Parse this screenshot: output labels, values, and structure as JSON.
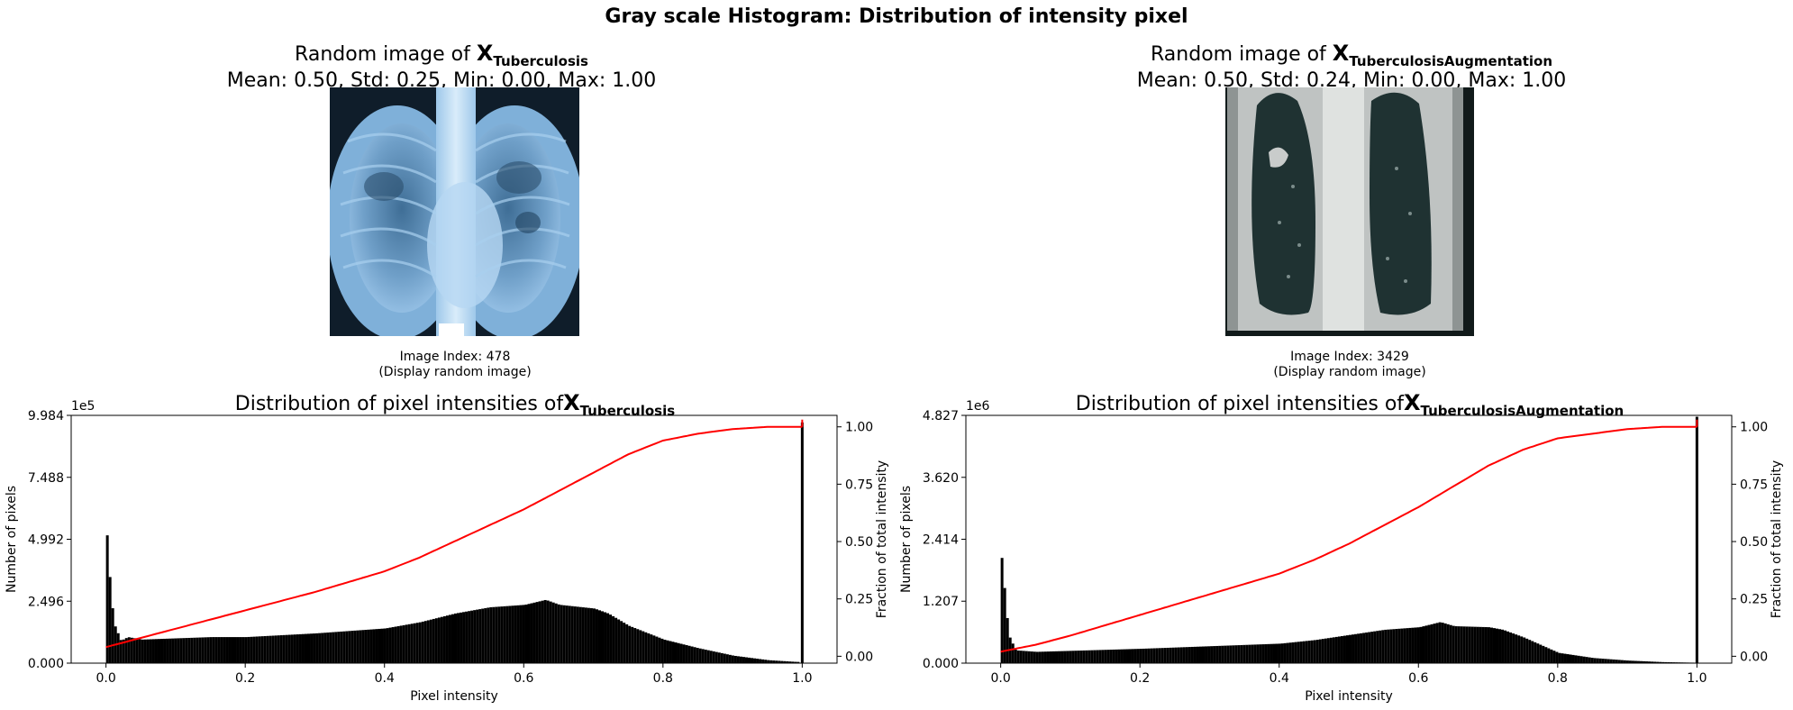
{
  "suptitle": "Gray scale Histogram: Distribution of intensity pixel",
  "panels": [
    {
      "image_title_prefix": "Random image of ",
      "image_title_symbol": "X",
      "image_title_subscript": "Tuberculosis",
      "image_stats": "Mean:  0.50, Std:  0.25, Min:  0.00, Max:  1.00",
      "caption_line1": "Image Index: 478",
      "caption_line2": "(Display random image)",
      "hist_title_prefix": "Distribution of pixel intensities of",
      "hist_title_symbol": "X",
      "hist_title_subscript": "Tuberculosis",
      "colors": {
        "image_tint": "#8fbfe6",
        "image_dark": "#0e1e2c"
      }
    },
    {
      "image_title_prefix": "Random image of ",
      "image_title_symbol": "X",
      "image_title_subscript": "TuberculosisAugmentation",
      "image_stats": "Mean:  0.50, Std:  0.24, Min:  0.00, Max:  1.00",
      "caption_line1": "Image Index: 3429",
      "caption_line2": "(Display random image)",
      "hist_title_prefix": "Distribution of pixel intensities of",
      "hist_title_symbol": "X",
      "hist_title_subscript": "TuberculosisAugmentation",
      "colors": {
        "image_tint": "#c9cccb",
        "image_dark": "#152322"
      }
    }
  ],
  "chart_data": [
    {
      "type": "bar",
      "xlabel": "Pixel intensity",
      "ylabel": "Number of pixels",
      "y2label": "Fraction of total intensity",
      "y_offset_label": "1e5",
      "xlim": [
        -0.05,
        1.05
      ],
      "ylim": [
        0,
        9.984
      ],
      "y2lim": [
        -0.03,
        1.05
      ],
      "xticks": [
        "0.0",
        "0.2",
        "0.4",
        "0.6",
        "0.8",
        "1.0"
      ],
      "xtick_values": [
        0,
        0.2,
        0.4,
        0.6,
        0.8,
        1.0
      ],
      "yticks": [
        "0.000",
        "2.496",
        "4.992",
        "7.488",
        "9.984"
      ],
      "ytick_values": [
        0,
        2.496,
        4.992,
        7.488,
        9.984
      ],
      "y2ticks": [
        "0.00",
        "0.25",
        "0.50",
        "0.75",
        "1.00"
      ],
      "y2tick_values": [
        0,
        0.25,
        0.5,
        0.75,
        1.0
      ],
      "histogram": {
        "x": [
          0.0,
          0.005,
          0.01,
          0.02,
          0.03,
          0.05,
          0.1,
          0.15,
          0.2,
          0.3,
          0.4,
          0.45,
          0.5,
          0.55,
          0.6,
          0.63,
          0.65,
          0.7,
          0.72,
          0.75,
          0.8,
          0.85,
          0.9,
          0.95,
          0.99,
          1.0
        ],
        "values": [
          5.15,
          3.0,
          1.6,
          0.9,
          1.05,
          0.95,
          1.0,
          1.05,
          1.05,
          1.2,
          1.4,
          1.65,
          2.0,
          2.25,
          2.35,
          2.55,
          2.35,
          2.2,
          2.0,
          1.5,
          0.95,
          0.6,
          0.3,
          0.12,
          0.05,
          9.7
        ]
      },
      "cumulative": {
        "name": "",
        "color": "#ff0000",
        "x": [
          0.0,
          0.05,
          0.1,
          0.2,
          0.3,
          0.4,
          0.45,
          0.5,
          0.55,
          0.6,
          0.65,
          0.7,
          0.75,
          0.8,
          0.85,
          0.9,
          0.95,
          1.0
        ],
        "values": [
          0.04,
          0.08,
          0.12,
          0.2,
          0.28,
          0.37,
          0.43,
          0.5,
          0.57,
          0.64,
          0.72,
          0.8,
          0.88,
          0.94,
          0.97,
          0.99,
          1.0,
          1.0
        ]
      }
    },
    {
      "type": "bar",
      "xlabel": "Pixel intensity",
      "ylabel": "Number of pixels",
      "y2label": "Fraction of total intensity",
      "y_offset_label": "1e6",
      "xlim": [
        -0.05,
        1.05
      ],
      "ylim": [
        0,
        4.827
      ],
      "y2lim": [
        -0.03,
        1.05
      ],
      "xticks": [
        "0.0",
        "0.2",
        "0.4",
        "0.6",
        "0.8",
        "1.0"
      ],
      "xtick_values": [
        0,
        0.2,
        0.4,
        0.6,
        0.8,
        1.0
      ],
      "yticks": [
        "0.000",
        "1.207",
        "2.414",
        "3.620",
        "4.827"
      ],
      "ytick_values": [
        0,
        1.207,
        2.414,
        3.62,
        4.827
      ],
      "y2ticks": [
        "0.00",
        "0.25",
        "0.50",
        "0.75",
        "1.00"
      ],
      "y2tick_values": [
        0,
        0.25,
        0.5,
        0.75,
        1.0
      ],
      "histogram": {
        "x": [
          0.0,
          0.005,
          0.01,
          0.02,
          0.05,
          0.1,
          0.2,
          0.3,
          0.4,
          0.45,
          0.5,
          0.55,
          0.6,
          0.63,
          0.65,
          0.7,
          0.72,
          0.75,
          0.8,
          0.85,
          0.9,
          0.95,
          0.99,
          1.0
        ],
        "values": [
          2.05,
          1.3,
          0.55,
          0.25,
          0.22,
          0.24,
          0.28,
          0.33,
          0.38,
          0.45,
          0.55,
          0.65,
          0.7,
          0.8,
          0.72,
          0.7,
          0.65,
          0.5,
          0.2,
          0.1,
          0.05,
          0.02,
          0.01,
          4.8
        ]
      },
      "cumulative": {
        "name": "",
        "color": "#ff0000",
        "x": [
          0.0,
          0.05,
          0.1,
          0.2,
          0.3,
          0.4,
          0.45,
          0.5,
          0.55,
          0.6,
          0.65,
          0.7,
          0.75,
          0.8,
          0.85,
          0.9,
          0.95,
          1.0
        ],
        "values": [
          0.02,
          0.05,
          0.09,
          0.18,
          0.27,
          0.36,
          0.42,
          0.49,
          0.57,
          0.65,
          0.74,
          0.83,
          0.9,
          0.95,
          0.97,
          0.99,
          1.0,
          1.0
        ]
      }
    }
  ]
}
